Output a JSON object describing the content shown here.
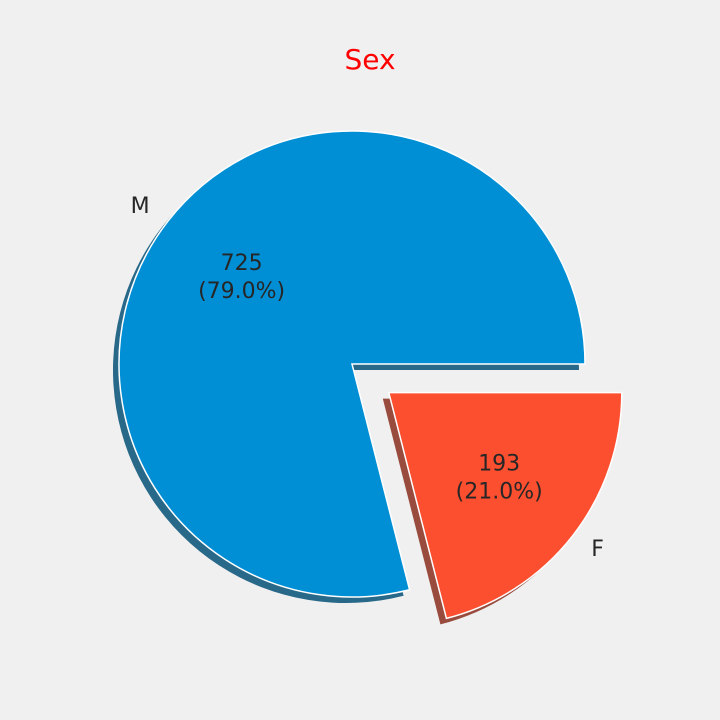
{
  "chart_data": {
    "type": "pie",
    "title": "Sex",
    "title_color": "#ff0000",
    "categories": [
      "M",
      "F"
    ],
    "values": [
      725,
      193
    ],
    "percent_labels": [
      "(79.0%)",
      "(21.0%)"
    ],
    "value_labels": [
      "725",
      "193"
    ],
    "colors": [
      "#008fd5",
      "#fc4f30"
    ],
    "explode": [
      0,
      0.2
    ],
    "shadow": true,
    "start_angle": 0,
    "counterclockwise": true
  }
}
